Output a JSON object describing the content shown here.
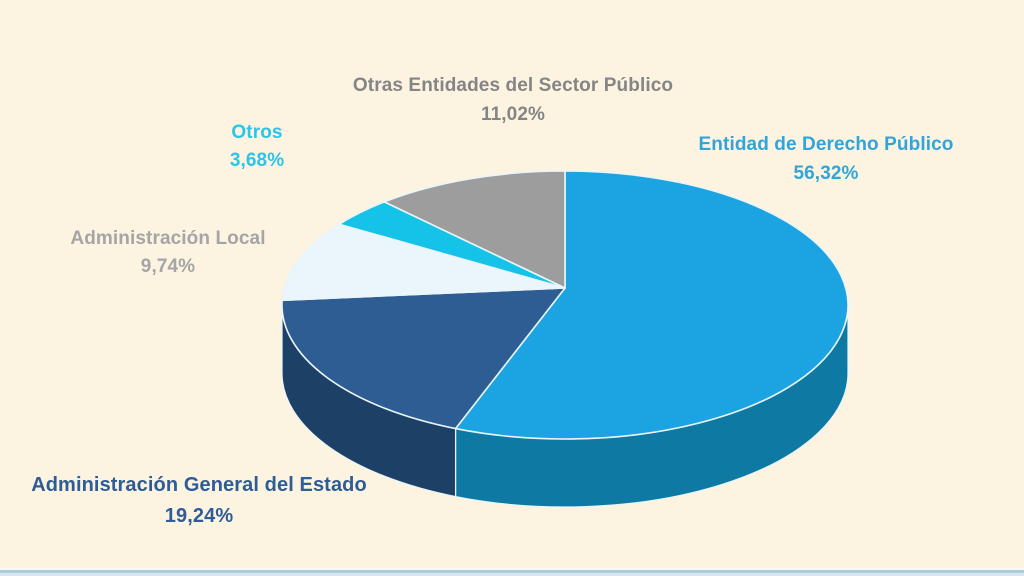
{
  "page": {
    "background": "#FCF3E1",
    "bottom_border": {
      "top_line": "#F5FAFC",
      "mid_line": "#AECDDC",
      "low_line": "#D8E7EF"
    }
  },
  "chart_data": {
    "type": "pie",
    "style": "3d",
    "start_angle_deg": 0,
    "direction": "clockwise",
    "legend": "none",
    "slices": [
      {
        "id": "entidad-de-derecho-publico",
        "label": "Entidad de Derecho Público",
        "value_pct": 56.32,
        "pct_text": "56,32%",
        "color": "#1BA3E2",
        "side_color": "#0E7AA3",
        "label_color": "#2FA5DC"
      },
      {
        "id": "administracion-general-del-estado",
        "label": "Administración General del Estado",
        "value_pct": 19.24,
        "pct_text": "19,24%",
        "color": "#2E5D94",
        "side_color": "#1D4066",
        "label_color": "#2D5C97"
      },
      {
        "id": "administracion-local",
        "label": "Administración Local",
        "value_pct": 9.74,
        "pct_text": "9,74%",
        "color": "#EAF6FB",
        "label_color": "#A5A5A5"
      },
      {
        "id": "otros",
        "label": "Otros",
        "value_pct": 3.68,
        "pct_text": "3,68%",
        "color": "#15C3E9",
        "label_color": "#2BC5EA"
      },
      {
        "id": "otras-entidades-del-sector-publico",
        "label": "Otras Entidades del Sector Público",
        "value_pct": 11.02,
        "pct_text": "11,02%",
        "color": "#9D9D9D",
        "label_color": "#858585"
      }
    ]
  }
}
